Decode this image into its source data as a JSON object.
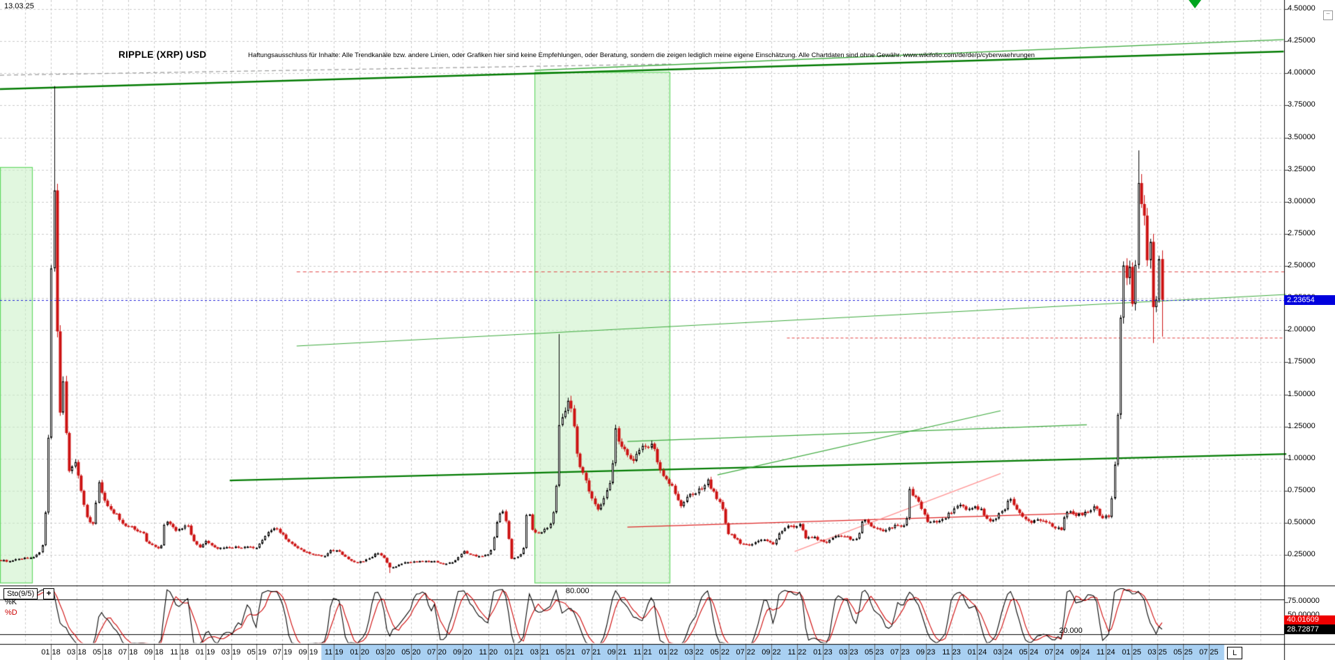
{
  "meta": {
    "date_label": "13.03.25",
    "title": "RIPPLE (XRP) USD",
    "disclaimer": "Haftungsausschluss für Inhalte: Alle Trendkanäle bzw. andere Linien, oder Grafiken hier sind keine Empfehlungen, oder Beratung, sondern die zeigen lediglich meine eigene Einschätzung. Alle Chartdaten sind ohne Gewähr.  www.wikifolio.com/de/de/p/cyberwaehrungen",
    "minimize_glyph": "−",
    "linear_scale_label": "L"
  },
  "price_axis": {
    "ticks": [
      "4.50000",
      "4.25000",
      "4.00000",
      "3.75000",
      "3.50000",
      "3.25000",
      "3.00000",
      "2.75000",
      "2.50000",
      "2.25000",
      "2.00000",
      "1.75000",
      "1.50000",
      "1.25000",
      "1.00000",
      "0.75000",
      "0.50000",
      "0.25000"
    ],
    "current_price": "2.23654"
  },
  "time_axis": {
    "labels": [
      "01 18",
      "03 18",
      "05 18",
      "07 18",
      "09 18",
      "11 18",
      "01 19",
      "03 19",
      "05 19",
      "07 19",
      "09 19",
      "11 19",
      "01 20",
      "03 20",
      "05 20",
      "07 20",
      "09 20",
      "11 20",
      "01 21",
      "03 21",
      "05 21",
      "07 21",
      "09 21",
      "11 21",
      "01 22",
      "03 22",
      "05 22",
      "07 22",
      "09 22",
      "11 22",
      "01 23",
      "03 23",
      "05 23",
      "07 23",
      "09 23",
      "11 23",
      "01 24",
      "03 24",
      "05 24",
      "07 24",
      "09 24",
      "11 24",
      "01 25",
      "03 25",
      "05 25",
      "07 25"
    ],
    "highlight_from_label_index": 11
  },
  "sto_panel": {
    "indicator_label": "Sto(9/5)",
    "plus_glyph": "+",
    "k_line_label": "%K",
    "d_line_label": "%D",
    "tick_75": "75.00000",
    "tick_50": "50.00000",
    "d_value": "40.01609",
    "k_value": "28.72877",
    "level_80_label": "80.000",
    "level_20_label": "20.000"
  },
  "colors": {
    "grid": "#c9c9c9",
    "candle_up": "#000000",
    "candle_down": "#cc1111",
    "band_fill": "rgba(201,240,196,0.55)",
    "band_edge": "rgba(95,215,95,0.95)",
    "trend_green_dark": "#007a00",
    "trend_green_light": "#3aa83a",
    "trend_gray": "#9a9a9a",
    "red_line": "#dd2222",
    "pink_line": "#ff9090",
    "blue_current": "#1b1bd6",
    "red_dashed": "#e04848",
    "sto_k": "#000000",
    "sto_d": "#cc0000",
    "x_highlight": "#a9d0f2",
    "price_box_bg": "#0000dd",
    "d_box_bg": "#ee0000",
    "k_box_bg": "#000000"
  },
  "chart_data": {
    "type": "candlestick",
    "title": "RIPPLE (XRP) USD",
    "timeframe": "weekly",
    "x_range_months": [
      "2018-01",
      "2025-07"
    ],
    "ylim": [
      0.03,
      4.57
    ],
    "y_tick_step": 0.25,
    "current_price": 2.23654,
    "indicator": {
      "name": "Sto",
      "period": 9,
      "slowing": 5,
      "k": 28.72877,
      "d": 40.01609,
      "levels": [
        80,
        20
      ]
    },
    "price_path_monthly": [
      [
        -3.9,
        0.21
      ],
      [
        -3.2,
        0.2
      ],
      [
        -2.5,
        0.22
      ],
      [
        -1.8,
        0.23
      ],
      [
        -1.2,
        0.24
      ],
      [
        -0.7,
        0.3
      ],
      [
        -0.45,
        0.55
      ],
      [
        -0.25,
        0.95
      ],
      [
        -0.1,
        1.6
      ],
      [
        0.05,
        2.6
      ],
      [
        0.18,
        3.25
      ],
      [
        0.35,
        2.75
      ],
      [
        0.55,
        1.6
      ],
      [
        0.75,
        1.35
      ],
      [
        0.95,
        1.62
      ],
      [
        1.2,
        1.15
      ],
      [
        1.45,
        0.85
      ],
      [
        1.75,
        1.02
      ],
      [
        2.05,
        0.9
      ],
      [
        2.4,
        0.7
      ],
      [
        2.8,
        0.53
      ],
      [
        3.3,
        0.5
      ],
      [
        3.7,
        0.82
      ],
      [
        4.1,
        0.7
      ],
      [
        4.6,
        0.6
      ],
      [
        5.1,
        0.56
      ],
      [
        5.6,
        0.48
      ],
      [
        6.1,
        0.47
      ],
      [
        6.6,
        0.45
      ],
      [
        7.1,
        0.43
      ],
      [
        7.5,
        0.34
      ],
      [
        8,
        0.33
      ],
      [
        8.5,
        0.28
      ],
      [
        8.85,
        0.53
      ],
      [
        9.2,
        0.49
      ],
      [
        9.7,
        0.44
      ],
      [
        10.2,
        0.46
      ],
      [
        10.6,
        0.5
      ],
      [
        11,
        0.37
      ],
      [
        11.5,
        0.31
      ],
      [
        12,
        0.36
      ],
      [
        12.6,
        0.31
      ],
      [
        13.3,
        0.3
      ],
      [
        14,
        0.31
      ],
      [
        14.7,
        0.31
      ],
      [
        15.4,
        0.31
      ],
      [
        16,
        0.3
      ],
      [
        16.5,
        0.39
      ],
      [
        17,
        0.44
      ],
      [
        17.5,
        0.46
      ],
      [
        18,
        0.41
      ],
      [
        18.6,
        0.34
      ],
      [
        19.2,
        0.3
      ],
      [
        19.8,
        0.27
      ],
      [
        20.5,
        0.25
      ],
      [
        21.2,
        0.24
      ],
      [
        21.8,
        0.29
      ],
      [
        22.4,
        0.28
      ],
      [
        23,
        0.22
      ],
      [
        23.6,
        0.19
      ],
      [
        24.2,
        0.2
      ],
      [
        24.8,
        0.23
      ],
      [
        25.4,
        0.27
      ],
      [
        25.9,
        0.23
      ],
      [
        26.3,
        0.15
      ],
      [
        26.8,
        0.16
      ],
      [
        27.4,
        0.19
      ],
      [
        28.2,
        0.2
      ],
      [
        29,
        0.2
      ],
      [
        29.8,
        0.2
      ],
      [
        30.6,
        0.18
      ],
      [
        31.3,
        0.2
      ],
      [
        32,
        0.28
      ],
      [
        32.7,
        0.25
      ],
      [
        33.4,
        0.24
      ],
      [
        34.1,
        0.26
      ],
      [
        34.65,
        0.5
      ],
      [
        35.05,
        0.62
      ],
      [
        35.4,
        0.5
      ],
      [
        35.8,
        0.22
      ],
      [
        36.2,
        0.23
      ],
      [
        36.7,
        0.28
      ],
      [
        37.05,
        0.66
      ],
      [
        37.35,
        0.45
      ],
      [
        37.75,
        0.43
      ],
      [
        38.2,
        0.44
      ],
      [
        38.7,
        0.47
      ],
      [
        39.2,
        0.65
      ],
      [
        39.55,
        1.38
      ],
      [
        39.9,
        1.33
      ],
      [
        40.25,
        1.5
      ],
      [
        40.65,
        1.25
      ],
      [
        41,
        0.95
      ],
      [
        41.5,
        0.85
      ],
      [
        42,
        0.68
      ],
      [
        42.5,
        0.61
      ],
      [
        43,
        0.72
      ],
      [
        43.5,
        0.82
      ],
      [
        43.85,
        1.22
      ],
      [
        44.2,
        1.12
      ],
      [
        44.7,
        1.03
      ],
      [
        45.2,
        0.95
      ],
      [
        45.7,
        1.08
      ],
      [
        46.2,
        1.1
      ],
      [
        46.7,
        1.13
      ],
      [
        47.1,
        0.97
      ],
      [
        47.6,
        0.86
      ],
      [
        48,
        0.83
      ],
      [
        48.5,
        0.74
      ],
      [
        49,
        0.62
      ],
      [
        49.5,
        0.74
      ],
      [
        50,
        0.72
      ],
      [
        50.5,
        0.77
      ],
      [
        51,
        0.83
      ],
      [
        51.6,
        0.73
      ],
      [
        52.2,
        0.6
      ],
      [
        52.6,
        0.42
      ],
      [
        53.1,
        0.39
      ],
      [
        53.7,
        0.33
      ],
      [
        54.3,
        0.33
      ],
      [
        54.9,
        0.36
      ],
      [
        55.5,
        0.37
      ],
      [
        56.1,
        0.33
      ],
      [
        56.7,
        0.43
      ],
      [
        57.2,
        0.48
      ],
      [
        57.8,
        0.46
      ],
      [
        58.3,
        0.49
      ],
      [
        58.65,
        0.38
      ],
      [
        59.1,
        0.39
      ],
      [
        59.7,
        0.37
      ],
      [
        60.3,
        0.35
      ],
      [
        60.9,
        0.39
      ],
      [
        61.5,
        0.4
      ],
      [
        62.1,
        0.38
      ],
      [
        62.7,
        0.37
      ],
      [
        63.05,
        0.52
      ],
      [
        63.5,
        0.5
      ],
      [
        64.1,
        0.46
      ],
      [
        64.7,
        0.44
      ],
      [
        65.3,
        0.47
      ],
      [
        65.9,
        0.48
      ],
      [
        66.45,
        0.47
      ],
      [
        66.7,
        0.78
      ],
      [
        67.1,
        0.7
      ],
      [
        67.6,
        0.63
      ],
      [
        68.1,
        0.5
      ],
      [
        68.7,
        0.51
      ],
      [
        69.3,
        0.53
      ],
      [
        69.9,
        0.58
      ],
      [
        70.5,
        0.65
      ],
      [
        71.1,
        0.61
      ],
      [
        71.7,
        0.62
      ],
      [
        72.3,
        0.6
      ],
      [
        72.9,
        0.51
      ],
      [
        73.5,
        0.55
      ],
      [
        74.1,
        0.61
      ],
      [
        74.45,
        0.7
      ],
      [
        74.9,
        0.63
      ],
      [
        75.5,
        0.56
      ],
      [
        76.1,
        0.5
      ],
      [
        76.7,
        0.53
      ],
      [
        77.3,
        0.51
      ],
      [
        77.9,
        0.47
      ],
      [
        78.5,
        0.45
      ],
      [
        78.85,
        0.58
      ],
      [
        79.3,
        0.58
      ],
      [
        79.9,
        0.56
      ],
      [
        80.5,
        0.59
      ],
      [
        81.1,
        0.62
      ],
      [
        81.7,
        0.54
      ],
      [
        82.2,
        0.55
      ],
      [
        82.55,
        0.78
      ],
      [
        82.85,
        1.25
      ],
      [
        83.05,
        1.95
      ],
      [
        83.25,
        2.55
      ],
      [
        83.5,
        2.32
      ],
      [
        83.75,
        2.6
      ],
      [
        84,
        2.12
      ],
      [
        84.25,
        2.42
      ],
      [
        84.5,
        3.22
      ],
      [
        84.72,
        3.05
      ],
      [
        84.95,
        2.95
      ],
      [
        85.15,
        2.48
      ],
      [
        85.4,
        2.72
      ],
      [
        85.65,
        2.2
      ],
      [
        85.9,
        2.26
      ],
      [
        86.1,
        2.52
      ],
      [
        86.4,
        2.23654
      ]
    ],
    "wick_extremes": [
      [
        0.18,
        3.9,
        "h"
      ],
      [
        26.3,
        0.11,
        "l"
      ],
      [
        39.55,
        1.97,
        "h"
      ],
      [
        84.5,
        3.4,
        "h"
      ],
      [
        85.65,
        1.9,
        "l"
      ],
      [
        86.4,
        1.95,
        "l"
      ]
    ],
    "regions": [
      {
        "name": "left-green-band",
        "t": [
          -3.95,
          -1.41
        ],
        "p": [
          0.03,
          3.27
        ]
      },
      {
        "name": "middle-green-band",
        "t": [
          37.58,
          48.13
        ],
        "p": [
          0.03,
          4.01
        ]
      }
    ],
    "trendlines": [
      {
        "name": "upper-channel-dashed",
        "p1": [
          -3.95,
          3.985
        ],
        "p2": [
          48.2,
          4.072
        ],
        "color": "trend_gray",
        "width": 1.2,
        "dash": [
          6,
          4
        ]
      },
      {
        "name": "upper-trend-main",
        "p1": [
          -3.95,
          3.877
        ],
        "p2": [
          95.8,
          4.169
        ],
        "color": "trend_green_dark",
        "width": 2.5,
        "dash": null
      },
      {
        "name": "upper-trend-right",
        "p1": [
          37.6,
          4.023
        ],
        "p2": [
          95.8,
          4.262
        ],
        "color": "trend_green_light",
        "width": 1.3,
        "dash": null
      },
      {
        "name": "mid-resistance",
        "p1": [
          19.1,
          1.877
        ],
        "p2": [
          96.0,
          2.278
        ],
        "color": "trend_green_light",
        "width": 1.2,
        "dash": null
      },
      {
        "name": "lower-support-thick",
        "p1": [
          13.9,
          0.831
        ],
        "p2": [
          96.0,
          1.037
        ],
        "color": "trend_green_dark",
        "width": 2.2,
        "dash": null
      },
      {
        "name": "minor-rising-a",
        "p1": [
          44.8,
          1.134
        ],
        "p2": [
          80.5,
          1.264
        ],
        "color": "trend_green_light",
        "width": 1.2,
        "dash": null
      },
      {
        "name": "minor-rising-b",
        "p1": [
          51.8,
          0.874
        ],
        "p2": [
          73.8,
          1.373
        ],
        "color": "trend_green_light",
        "width": 1.2,
        "dash": null
      },
      {
        "name": "red-resistance",
        "p1": [
          44.8,
          0.468
        ],
        "p2": [
          80.5,
          0.577
        ],
        "color": "red_line",
        "width": 1.3,
        "dash": null
      },
      {
        "name": "pink-diagonal",
        "p1": [
          57.8,
          0.278
        ],
        "p2": [
          73.8,
          0.885
        ],
        "color": "pink_line",
        "width": 1.3,
        "dash": null
      }
    ],
    "hlines": [
      {
        "name": "current-price-line",
        "price": 2.23654,
        "t": [
          -3.95,
          95.85
        ],
        "color": "blue_current",
        "dash": [
          3,
          3
        ],
        "width": 1
      },
      {
        "name": "red-dashed-upper",
        "price": 2.457,
        "t": [
          19.1,
          95.85
        ],
        "color": "red_dashed",
        "dash": [
          5,
          4
        ],
        "width": 1
      },
      {
        "name": "red-dashed-lower",
        "price": 1.943,
        "t": [
          57.2,
          95.85
        ],
        "color": "red_dashed",
        "dash": [
          4,
          3
        ],
        "width": 1
      }
    ]
  }
}
